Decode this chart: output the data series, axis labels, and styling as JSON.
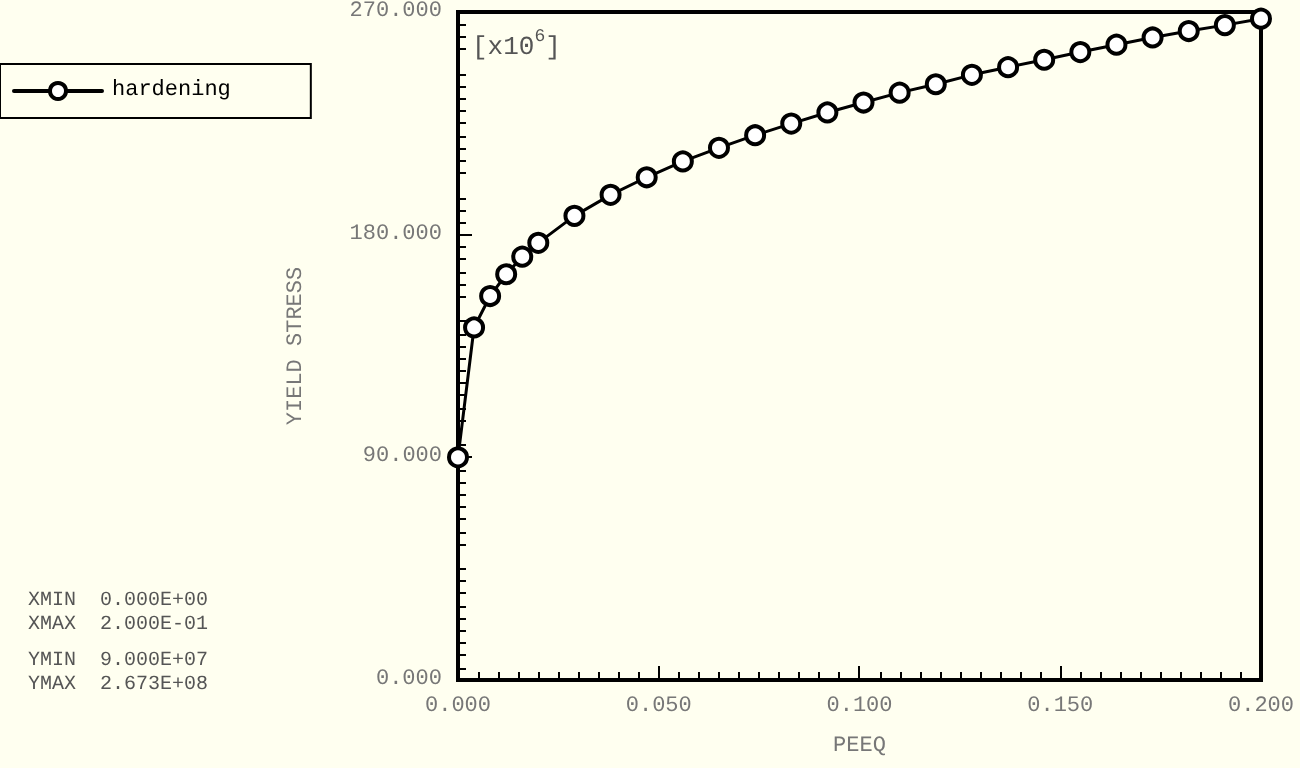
{
  "chart_data": {
    "type": "line",
    "xlabel": "PEEQ",
    "ylabel": "YIELD STRESS",
    "annotations": [
      "[x10$^{6}$]",
      "XMIN  0.000E+00",
      "XMAX  2.000E-01",
      "YMIN  9.000E+07",
      "YMAX  2.673E+08"
    ],
    "x": [
      0,
      0.004,
      0.008,
      0.012,
      0.016,
      0.02,
      0.029,
      0.038,
      0.047,
      0.056,
      0.065,
      0.074,
      0.083,
      0.092,
      0.101,
      0.11,
      0.119,
      0.128,
      0.137,
      0.146,
      0.155,
      0.164,
      0.173,
      0.182,
      0.191,
      0.2
    ],
    "series": [
      {
        "name": "hardening",
        "color": "#000000",
        "values": [
          90,
          142.5,
          155.2,
          164.0,
          171.1,
          176.7,
          187.6,
          196.1,
          203.2,
          209.6,
          215.1,
          220.2,
          224.9,
          229.4,
          233.4,
          237.4,
          240.8,
          244.6,
          247.7,
          250.7,
          253.8,
          256.8,
          259.7,
          262.3,
          264.7,
          267.3
        ]
      }
    ],
    "xlim": [
      0,
      0.2
    ],
    "xticks": [
      {
        "value": 0,
        "label": "0.000"
      },
      {
        "value": 0.05,
        "label": "0.050"
      },
      {
        "value": 0.1,
        "label": "0.100"
      },
      {
        "value": 0.15,
        "label": "0.150"
      },
      {
        "value": 0.2,
        "label": "0.200"
      }
    ],
    "ylim": [
      0,
      270
    ],
    "yticks": [
      {
        "value": 0,
        "label": "0.000"
      },
      {
        "value": 90,
        "label": "90.000"
      },
      {
        "value": 180,
        "label": "180.000"
      },
      {
        "value": 270,
        "label": "270.000"
      }
    ],
    "grid": false,
    "legend": "top left",
    "marker": "circle",
    "line_style": "solid"
  }
}
